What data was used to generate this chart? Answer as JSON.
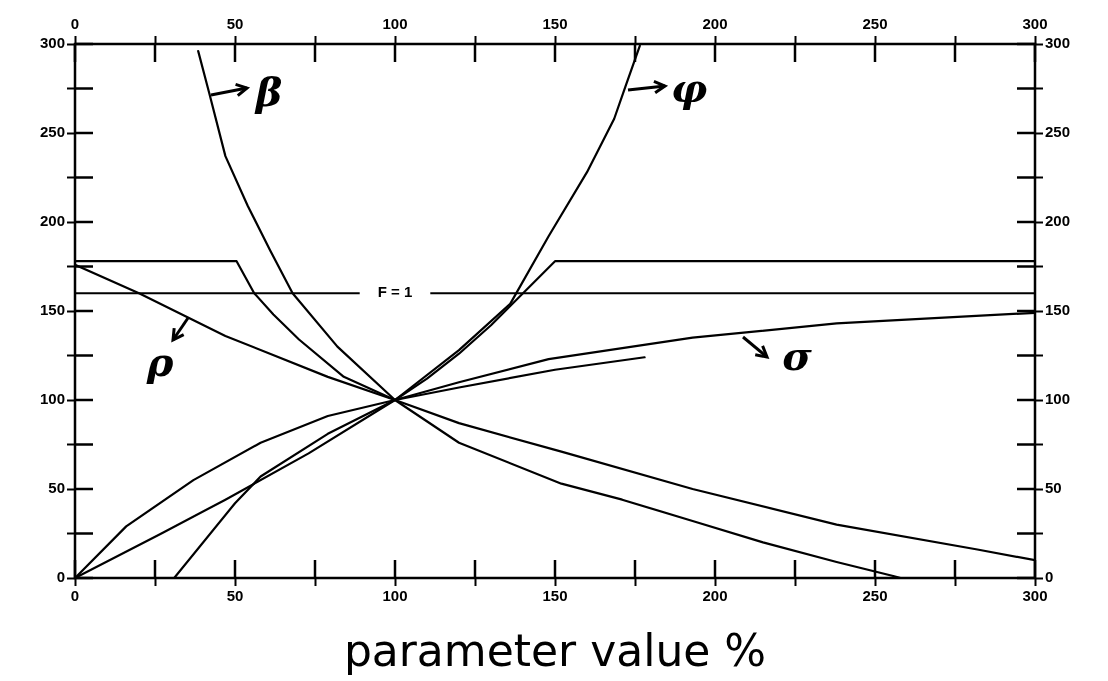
{
  "chart_data": {
    "type": "line",
    "xlabel": "parameter value %",
    "xlim": [
      0,
      300
    ],
    "xticks": [
      0,
      {
        "value": 25,
        "label": null
      },
      50,
      {
        "value": 75,
        "label": null
      },
      100,
      {
        "value": 125,
        "label": null
      },
      150,
      {
        "value": 175,
        "label": null
      },
      200,
      {
        "value": 225,
        "label": null
      },
      250,
      {
        "value": 275,
        "label": null
      },
      300
    ],
    "x2lim": [
      0,
      300
    ],
    "x2ticks": [
      0,
      {
        "value": 25,
        "label": null
      },
      50,
      {
        "value": 75,
        "label": null
      },
      100,
      {
        "value": 125,
        "label": null
      },
      150,
      {
        "value": 175,
        "label": null
      },
      200,
      {
        "value": 225,
        "label": null
      },
      250,
      {
        "value": 275,
        "label": null
      },
      300
    ],
    "ylim": [
      0,
      300
    ],
    "yticks": [
      0,
      {
        "value": 25,
        "label": null
      },
      50,
      {
        "value": 75,
        "label": null
      },
      100,
      {
        "value": 125,
        "label": null
      },
      150,
      {
        "value": 175,
        "label": null
      },
      200,
      {
        "value": 225,
        "label": null
      },
      250,
      {
        "value": 275,
        "label": null
      },
      300
    ],
    "y2lim": [
      0,
      300
    ],
    "y2ticks": [
      0,
      {
        "value": 25,
        "label": null
      },
      50,
      {
        "value": 75,
        "label": null
      },
      100,
      {
        "value": 125,
        "label": null
      },
      150,
      {
        "value": 175,
        "label": null
      },
      200,
      {
        "value": 225,
        "label": null
      },
      250,
      {
        "value": 275,
        "label": null
      },
      300
    ],
    "grid": false,
    "legend": "top left",
    "marker": "none",
    "line_style": "solid",
    "ref_lines": [
      {
        "axis": "y",
        "value": 160,
        "color": "#000000"
      }
    ],
    "annotations": [
      {
        "text": "F = 1",
        "x": 100,
        "y": 160
      }
    ],
    "series": [
      {
        "name": "ρ",
        "color": "#000000",
        "x": [
          0,
          20,
          47,
          79,
          100,
          120,
          152,
          193,
          238,
          282,
          300
        ],
        "values": [
          176,
          160,
          136,
          113,
          100,
          87,
          71,
          50,
          30,
          16,
          10
        ]
      },
      {
        "name": "β",
        "color": "#000000",
        "x": [
          38.5,
          42,
          47,
          54,
          61,
          68,
          82,
          100,
          120,
          152,
          171,
          193,
          215,
          238,
          256,
          258
        ],
        "values": [
          296,
          272,
          237,
          209,
          184,
          160,
          130,
          100,
          76,
          53,
          44,
          32,
          20,
          9,
          1,
          0
        ]
      },
      {
        "name": "φ",
        "color": "#000000",
        "x": [
          31,
          50,
          58,
          79,
          100,
          120,
          136,
          148,
          160,
          168.5,
          172,
          176.5
        ],
        "values": [
          0,
          42,
          57,
          81,
          100,
          128,
          154,
          192,
          228,
          258,
          276,
          299
        ]
      },
      {
        "name": "σ",
        "color": "#000000",
        "x": [
          0,
          16,
          37,
          58,
          79,
          100,
          120,
          148,
          193,
          238,
          300
        ],
        "values": [
          0,
          29,
          55,
          76,
          91,
          100,
          110,
          123,
          135,
          143,
          149
        ]
      },
      {
        "color": "#000000",
        "x": [
          0,
          50.5,
          56,
          62,
          70,
          84,
          100,
          110,
          120,
          130,
          140,
          150,
          300
        ],
        "values": [
          178,
          178,
          160,
          148,
          134,
          113,
          100,
          112,
          126,
          142,
          160,
          178,
          178
        ]
      },
      {
        "color": "#000000",
        "x": [
          0,
          27,
          47,
          73,
          100,
          120,
          150,
          178
        ],
        "values": [
          0,
          25,
          44,
          70,
          100,
          107,
          117,
          124
        ]
      }
    ]
  }
}
